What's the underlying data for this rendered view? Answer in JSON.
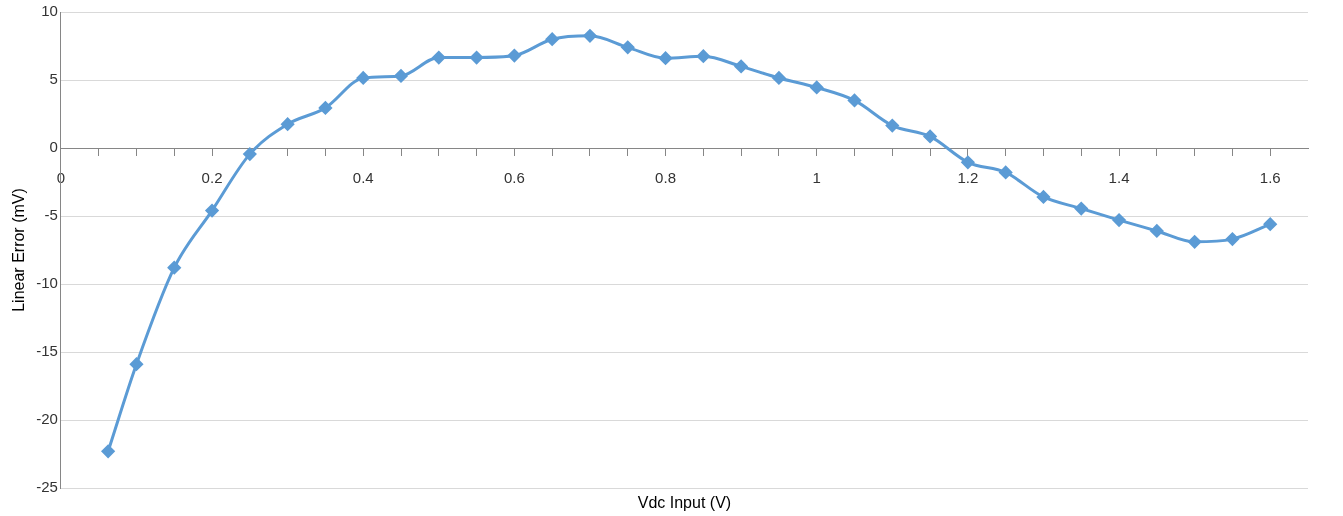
{
  "chart_data": {
    "type": "line",
    "xlabel": "Vdc Input (V)",
    "ylabel": "Linear Error (mV)",
    "x": [
      0.0625,
      0.1,
      0.15,
      0.2,
      0.25,
      0.3,
      0.35,
      0.4,
      0.45,
      0.5,
      0.55,
      0.6,
      0.65,
      0.7,
      0.75,
      0.8,
      0.85,
      0.9,
      0.95,
      1.0,
      1.05,
      1.1,
      1.15,
      1.2,
      1.25,
      1.3,
      1.35,
      1.4,
      1.45,
      1.5,
      1.55,
      1.6
    ],
    "series": [
      {
        "color": "#5b9bd5",
        "values": [
          -22.3,
          -15.9,
          -8.8,
          -4.6,
          -0.45,
          1.75,
          2.95,
          5.15,
          5.3,
          6.65,
          6.65,
          6.8,
          8.0,
          8.25,
          7.4,
          6.6,
          6.75,
          6.0,
          5.15,
          4.45,
          3.5,
          1.65,
          0.85,
          -1.05,
          -1.8,
          -3.6,
          -4.45,
          -5.3,
          -6.1,
          -6.9,
          -6.7,
          -5.6
        ]
      }
    ],
    "xlim": [
      0,
      1.65
    ],
    "xticks": [
      0,
      {
        "value": 0.05,
        "label": null
      },
      0.2,
      {
        "value": 0.1,
        "label": null
      },
      {
        "value": 0.15,
        "label": null
      },
      {
        "value": 0.25,
        "label": null
      },
      {
        "value": 0.3,
        "label": null
      },
      {
        "value": 0.35,
        "label": null
      },
      0.4,
      {
        "value": 0.45,
        "label": null
      },
      {
        "value": 0.5,
        "label": null
      },
      {
        "value": 0.55,
        "label": null
      },
      0.6,
      {
        "value": 0.65,
        "label": null
      },
      {
        "value": 0.7,
        "label": null
      },
      {
        "value": 0.75,
        "label": null
      },
      0.8,
      {
        "value": 0.85,
        "label": null
      },
      {
        "value": 0.9,
        "label": null
      },
      {
        "value": 0.95,
        "label": null
      },
      1,
      {
        "value": 1.05,
        "label": null
      },
      {
        "value": 1.1,
        "label": null
      },
      {
        "value": 1.15,
        "label": null
      },
      1.2,
      {
        "value": 1.25,
        "label": null
      },
      {
        "value": 1.3,
        "label": null
      },
      {
        "value": 1.35,
        "label": null
      },
      1.4,
      {
        "value": 1.45,
        "label": null
      },
      {
        "value": 1.5,
        "label": null
      },
      {
        "value": 1.55,
        "label": null
      },
      1.6
    ],
    "ylim": [
      -25,
      10
    ],
    "yticks": [
      -25,
      -20,
      -15,
      -10,
      -5,
      0,
      5,
      10
    ],
    "grid": "y",
    "legend": false,
    "marker": "diamond",
    "line_style": "solid"
  }
}
